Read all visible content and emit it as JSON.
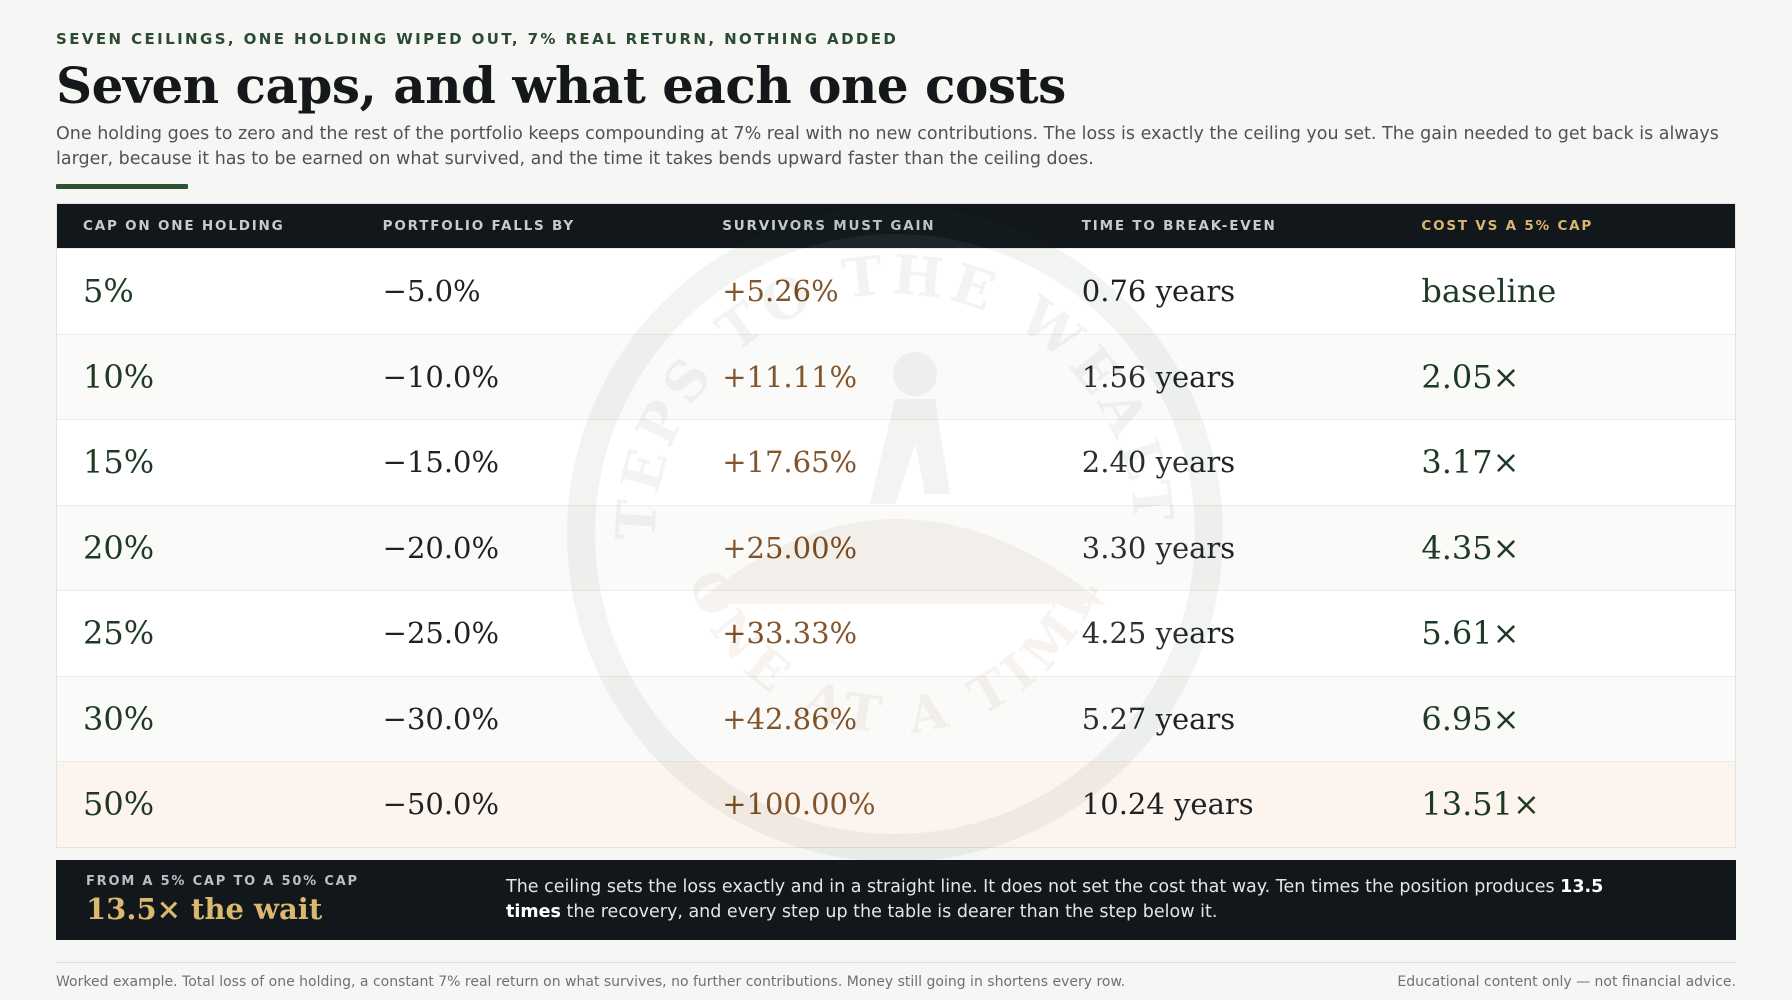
{
  "header": {
    "eyebrow": "SEVEN CEILINGS, ONE HOLDING WIPED OUT, 7% REAL RETURN, NOTHING ADDED",
    "title": "Seven caps, and what each one costs",
    "subtitle": "One holding goes to zero and the rest of the portfolio keeps compounding at 7% real with no new contributions. The loss is exactly the ceiling you set. The gain needed to get back is always larger, because it has to be earned on what survived, and the time it takes bends upward faster than the ceiling does."
  },
  "table": {
    "columns": [
      "CAP ON ONE HOLDING",
      "PORTFOLIO FALLS BY",
      "SURVIVORS MUST GAIN",
      "TIME TO BREAK-EVEN",
      "COST VS A 5% CAP"
    ],
    "rows": [
      {
        "cap": "5%",
        "falls": "−5.0%",
        "gain": "+5.26%",
        "time": "0.76 years",
        "cost": "baseline"
      },
      {
        "cap": "10%",
        "falls": "−10.0%",
        "gain": "+11.11%",
        "time": "1.56 years",
        "cost": "2.05×"
      },
      {
        "cap": "15%",
        "falls": "−15.0%",
        "gain": "+17.65%",
        "time": "2.40 years",
        "cost": "3.17×"
      },
      {
        "cap": "20%",
        "falls": "−20.0%",
        "gain": "+25.00%",
        "time": "3.30 years",
        "cost": "4.35×"
      },
      {
        "cap": "25%",
        "falls": "−25.0%",
        "gain": "+33.33%",
        "time": "4.25 years",
        "cost": "5.61×"
      },
      {
        "cap": "30%",
        "falls": "−30.0%",
        "gain": "+42.86%",
        "time": "5.27 years",
        "cost": "6.95×"
      },
      {
        "cap": "50%",
        "falls": "−50.0%",
        "gain": "+100.00%",
        "time": "10.24 years",
        "cost": "13.51×"
      }
    ]
  },
  "watermark": {
    "top_text": "STEPS TO THE WEALTH",
    "bottom_text": "ONE AT A TIME"
  },
  "summary": {
    "eyebrow": "FROM A 5% CAP TO A 50% CAP",
    "big": "13.5× the wait",
    "text_before": "The ceiling sets the loss exactly and in a straight line. It does not set the cost that way. Ten times the position produces ",
    "text_bold": "13.5 times",
    "text_after": " the recovery, and every step up the table is dearer than the step below it."
  },
  "footer": {
    "left": "Worked example. Total loss of one holding, a constant 7% real return on what survives, no further contributions. Money still going in shortens every row.",
    "right": "Educational content only — not financial advice."
  },
  "colors": {
    "accent_green": "#2f5234",
    "dark": "#12171c",
    "gold": "#dcb86e",
    "gain_brown": "#7a4a1e",
    "highlight_row": "#fcf3ec"
  }
}
